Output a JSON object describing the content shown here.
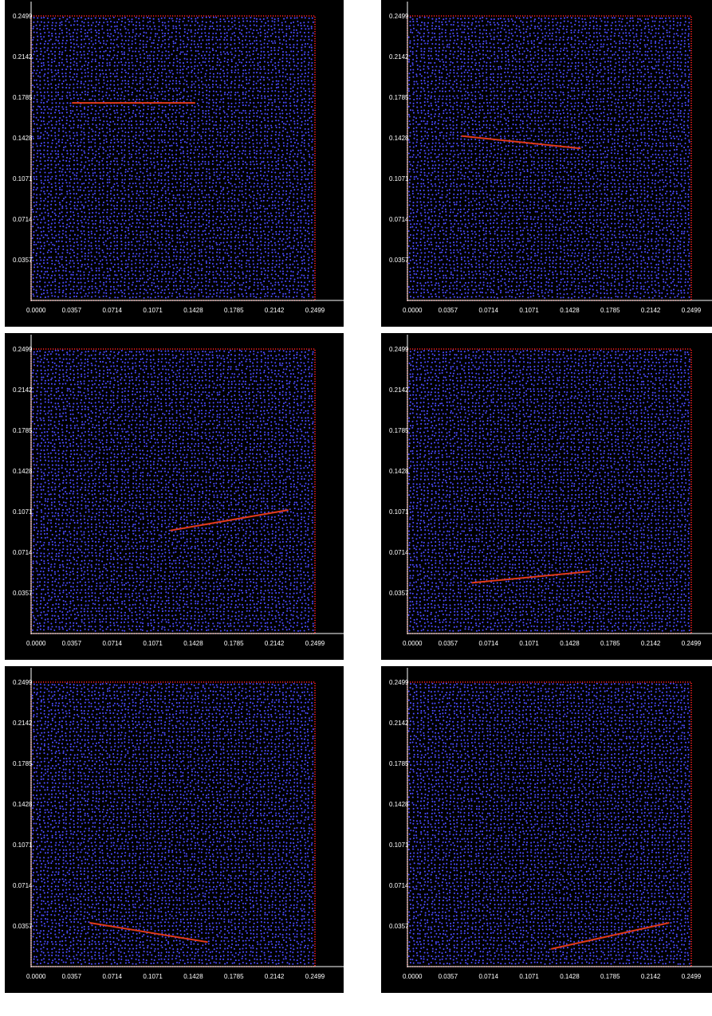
{
  "colors": {
    "background": "#000000",
    "particles": "#4a4aff",
    "boundary": "#ff2020",
    "crack": "#e03a1a",
    "axis": "#ffffff",
    "page": "#ffffff"
  },
  "chart_data": [
    {
      "type": "scatter",
      "title": "",
      "xlabel": "",
      "ylabel": "",
      "xlim": [
        0,
        0.2499
      ],
      "ylim": [
        0,
        0.2499
      ],
      "x_tick_labels": [
        "0.0000",
        "0.0357",
        "0.0714",
        "0.1071",
        "0.1428",
        "0.1785",
        "0.2142",
        "0.2499"
      ],
      "y_tick_labels": [
        "0.0357",
        "0.0714",
        "0.1071",
        "0.1428",
        "0.1785",
        "0.2142",
        "0.2499"
      ],
      "grid": false,
      "crack": {
        "x1": 0.036,
        "y1": 0.1735,
        "x2": 0.1445,
        "y2": 0.1735
      }
    },
    {
      "type": "scatter",
      "title": "",
      "xlabel": "",
      "ylabel": "",
      "xlim": [
        0,
        0.2499
      ],
      "ylim": [
        0,
        0.2499
      ],
      "x_tick_labels": [
        "0.0000",
        "0.0357",
        "0.0714",
        "0.1071",
        "0.1428",
        "0.1785",
        "0.2142",
        "0.2499"
      ],
      "y_tick_labels": [
        "0.0357",
        "0.0714",
        "0.1071",
        "0.1428",
        "0.1785",
        "0.2142",
        "0.2499"
      ],
      "grid": false,
      "crack": {
        "x1": 0.0475,
        "y1": 0.1445,
        "x2": 0.1525,
        "y2": 0.1335
      }
    },
    {
      "type": "scatter",
      "title": "",
      "xlabel": "",
      "ylabel": "",
      "xlim": [
        0,
        0.2499
      ],
      "ylim": [
        0,
        0.2499
      ],
      "x_tick_labels": [
        "0.0000",
        "0.0357",
        "0.0714",
        "0.1071",
        "0.1428",
        "0.1785",
        "0.2142",
        "0.2499"
      ],
      "y_tick_labels": [
        "0.0357",
        "0.0714",
        "0.1071",
        "0.1428",
        "0.1785",
        "0.2142",
        "0.2499"
      ],
      "grid": false,
      "crack": {
        "x1": 0.1225,
        "y1": 0.0905,
        "x2": 0.2265,
        "y2": 0.1085
      }
    },
    {
      "type": "scatter",
      "title": "",
      "xlabel": "",
      "ylabel": "",
      "xlim": [
        0,
        0.2499
      ],
      "ylim": [
        0,
        0.2499
      ],
      "x_tick_labels": [
        "0.0000",
        "0.0357",
        "0.0714",
        "0.1071",
        "0.1428",
        "0.1785",
        "0.2142",
        "0.2499"
      ],
      "y_tick_labels": [
        "0.0357",
        "0.0714",
        "0.1071",
        "0.1428",
        "0.1785",
        "0.2142",
        "0.2499"
      ],
      "grid": false,
      "crack": {
        "x1": 0.0565,
        "y1": 0.0445,
        "x2": 0.1605,
        "y2": 0.0545
      }
    },
    {
      "type": "scatter",
      "title": "",
      "xlabel": "",
      "ylabel": "",
      "xlim": [
        0,
        0.2499
      ],
      "ylim": [
        0,
        0.2499
      ],
      "x_tick_labels": [
        "0.0000",
        "0.0357",
        "0.0714",
        "0.1071",
        "0.1428",
        "0.1785",
        "0.2142",
        "0.2499"
      ],
      "y_tick_labels": [
        "0.0357",
        "0.0714",
        "0.1071",
        "0.1428",
        "0.1785",
        "0.2142",
        "0.2499"
      ],
      "grid": false,
      "crack": {
        "x1": 0.0515,
        "y1": 0.0385,
        "x2": 0.1555,
        "y2": 0.0215
      }
    },
    {
      "type": "scatter",
      "title": "",
      "xlabel": "",
      "ylabel": "",
      "xlim": [
        0,
        0.2499
      ],
      "ylim": [
        0,
        0.2499
      ],
      "x_tick_labels": [
        "0.0000",
        "0.0357",
        "0.0714",
        "0.1071",
        "0.1428",
        "0.1785",
        "0.2142",
        "0.2499"
      ],
      "y_tick_labels": [
        "0.0357",
        "0.0714",
        "0.1071",
        "0.1428",
        "0.1785",
        "0.2142",
        "0.2499"
      ],
      "grid": false,
      "crack": {
        "x1": 0.1265,
        "y1": 0.0155,
        "x2": 0.2305,
        "y2": 0.0385
      }
    }
  ]
}
